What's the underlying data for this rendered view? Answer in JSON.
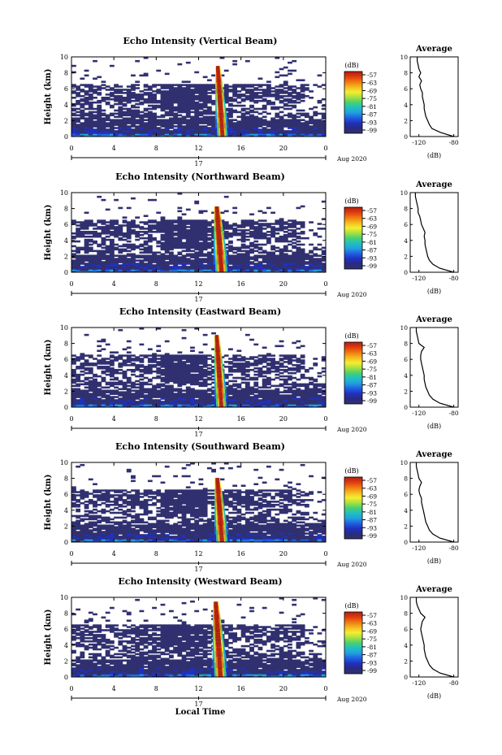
{
  "figure": {
    "colorbar_unit": "(dB)",
    "colorbar_ticks": [
      "-57",
      "-63",
      "-69",
      "-75",
      "-81",
      "-87",
      "-93",
      "-99"
    ],
    "colorbar_colors": [
      "#b02010",
      "#e03a10",
      "#f07a10",
      "#f5b820",
      "#f5ee30",
      "#a8e040",
      "#48d070",
      "#20c0c0",
      "#20a0e0",
      "#2060e0",
      "#2030c0",
      "#2a2a80",
      "#303070"
    ],
    "xaxis_ticks": [
      "0",
      "4",
      "8",
      "12",
      "16",
      "20",
      "0"
    ],
    "yaxis_ticks": [
      "0",
      "2",
      "4",
      "6",
      "8",
      "10"
    ],
    "ylabel": "Height (km)",
    "date_tick_label": "17",
    "date_text": "Aug 2020",
    "xlabel": "Local Time",
    "avg_title": "Average",
    "avg_xticks": [
      "-120",
      "-80"
    ],
    "avg_xlabel": "(dB)",
    "background_color": "#303070"
  },
  "chart_data": [
    {
      "type": "heatmap",
      "title": "Echo Intensity (Vertical Beam)",
      "xlabel": "",
      "ylabel": "Height (km)",
      "xlim": [
        0,
        24
      ],
      "ylim": [
        0,
        10
      ],
      "colorbar_range": [
        -99,
        -57
      ],
      "core": {
        "start_h": 13.6,
        "end_h": 14.8,
        "peak_db": -57,
        "top_km": 8.8
      },
      "average_profile": {
        "heights_km": [
          0,
          0.5,
          1,
          1.5,
          2,
          2.5,
          3,
          3.5,
          4,
          4.5,
          5,
          5.5,
          6,
          6.5,
          7,
          7.5,
          8,
          8.5,
          9,
          9.5,
          10
        ],
        "db": [
          -80,
          -95,
          -105,
          -108,
          -110,
          -112,
          -113,
          -114,
          -114,
          -115,
          -116,
          -116,
          -118,
          -119,
          -117,
          -120,
          -118,
          -120,
          -121,
          -122,
          -122
        ],
        "xlim": [
          -130,
          -75
        ]
      }
    },
    {
      "type": "heatmap",
      "title": "Echo Intensity (Northward Beam)",
      "xlabel": "",
      "ylabel": "Height (km)",
      "xlim": [
        0,
        24
      ],
      "ylim": [
        0,
        10
      ],
      "colorbar_range": [
        -99,
        -57
      ],
      "core": {
        "start_h": 13.4,
        "end_h": 14.8,
        "peak_db": -57,
        "top_km": 8.2
      },
      "average_profile": {
        "heights_km": [
          0,
          0.5,
          1,
          1.5,
          2,
          2.5,
          3,
          3.5,
          4,
          4.5,
          5,
          5.5,
          6,
          6.5,
          7,
          7.5,
          8,
          8.5,
          9,
          9.5,
          10
        ],
        "db": [
          -80,
          -96,
          -104,
          -108,
          -110,
          -111,
          -112,
          -113,
          -113,
          -114,
          -113,
          -115,
          -117,
          -118,
          -119,
          -121,
          -121,
          -122,
          -123,
          -124,
          -124
        ],
        "xlim": [
          -130,
          -75
        ]
      }
    },
    {
      "type": "heatmap",
      "title": "Echo Intensity (Eastward Beam)",
      "xlabel": "",
      "ylabel": "Height (km)",
      "xlim": [
        0,
        24
      ],
      "ylim": [
        0,
        10
      ],
      "colorbar_range": [
        -99,
        -57
      ],
      "core": {
        "start_h": 13.5,
        "end_h": 14.7,
        "peak_db": -57,
        "top_km": 9.0
      },
      "average_profile": {
        "heights_km": [
          0,
          0.5,
          1,
          1.5,
          2,
          2.5,
          3,
          3.5,
          4,
          4.5,
          5,
          5.5,
          6,
          6.5,
          7,
          7.5,
          8,
          8.5,
          9,
          9.5,
          10
        ],
        "db": [
          -80,
          -96,
          -104,
          -108,
          -110,
          -112,
          -113,
          -114,
          -114,
          -115,
          -116,
          -117,
          -118,
          -118,
          -117,
          -114,
          -120,
          -121,
          -122,
          -123,
          -123
        ],
        "xlim": [
          -130,
          -75
        ]
      }
    },
    {
      "type": "heatmap",
      "title": "Echo Intensity (Southward Beam)",
      "xlabel": "",
      "ylabel": "Height (km)",
      "xlim": [
        0,
        24
      ],
      "ylim": [
        0,
        10
      ],
      "colorbar_range": [
        -99,
        -57
      ],
      "core": {
        "start_h": 13.5,
        "end_h": 14.8,
        "peak_db": -57,
        "top_km": 8.0
      },
      "average_profile": {
        "heights_km": [
          0,
          0.5,
          1,
          1.5,
          2,
          2.5,
          3,
          3.5,
          4,
          4.5,
          5,
          5.5,
          6,
          6.5,
          7,
          7.5,
          8,
          8.5,
          9,
          9.5,
          10
        ],
        "db": [
          -80,
          -96,
          -104,
          -108,
          -110,
          -112,
          -113,
          -114,
          -115,
          -116,
          -117,
          -117,
          -119,
          -120,
          -119,
          -117,
          -120,
          -121,
          -122,
          -123,
          -123
        ],
        "xlim": [
          -130,
          -75
        ]
      }
    },
    {
      "type": "heatmap",
      "title": "Echo Intensity (Westward Beam)",
      "xlabel": "Local Time",
      "ylabel": "Height (km)",
      "xlim": [
        0,
        24
      ],
      "ylim": [
        0,
        10
      ],
      "colorbar_range": [
        -99,
        -57
      ],
      "core": {
        "start_h": 13.3,
        "end_h": 14.7,
        "peak_db": -57,
        "top_km": 9.4
      },
      "average_profile": {
        "heights_km": [
          0,
          0.5,
          1,
          1.5,
          2,
          2.5,
          3,
          3.5,
          4,
          4.5,
          5,
          5.5,
          6,
          6.5,
          7,
          7.5,
          8,
          8.5,
          9,
          9.5,
          10
        ],
        "db": [
          -80,
          -96,
          -104,
          -108,
          -110,
          -112,
          -113,
          -114,
          -114,
          -115,
          -116,
          -117,
          -118,
          -117,
          -116,
          -113,
          -118,
          -120,
          -122,
          -123,
          -123
        ],
        "xlim": [
          -130,
          -75
        ]
      }
    }
  ]
}
